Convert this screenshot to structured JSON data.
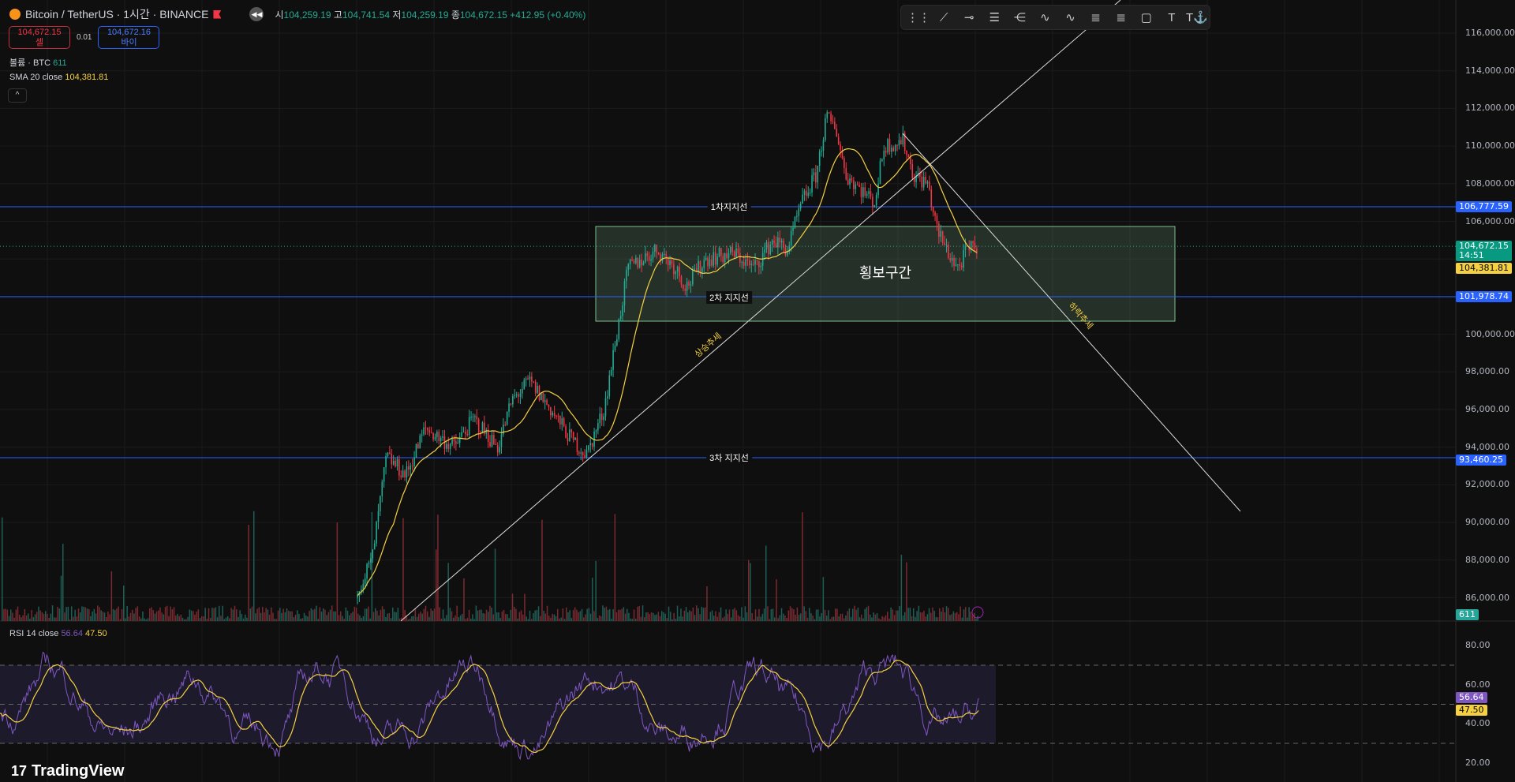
{
  "header": {
    "symbol": "Bitcoin / TetherUS · 1시간 · BINANCE",
    "ohlc": [
      {
        "k": "시",
        "v": "104,259.19"
      },
      {
        "k": "고",
        "v": "104,741.54"
      },
      {
        "k": "저",
        "v": "104,259.19"
      },
      {
        "k": "종",
        "v": "104,672.15"
      }
    ],
    "change": "+412.95 (+0.40%)"
  },
  "trade": {
    "sell_price": "104,672.15",
    "sell_label": "셀",
    "spread": "0.01",
    "buy_price": "104,672.16",
    "buy_label": "바이"
  },
  "legend": {
    "volume_label": "볼륨 · BTC",
    "volume_value": "611",
    "sma_label": "SMA 20 close",
    "sma_value": "104,381.81",
    "rsi_label": "RSI 14 close",
    "rsi_value": "56.64",
    "rsi_ma_value": "47.50"
  },
  "toolbar": [
    "drag-handle",
    "trend-line",
    "horizontal-ray",
    "parallel-channel",
    "pitchfork",
    "elliott-wave-15",
    "elliott-wave-ac",
    "fib-retracement",
    "fib-extension",
    "rectangle",
    "text",
    "anchored-text"
  ],
  "price_axis": [
    "116,000.00",
    "114,000.00",
    "112,000.00",
    "110,000.00",
    "108,000.00",
    "106,000.00",
    "100,000.00",
    "98,000.00",
    "96,000.00",
    "94,000.00",
    "92,000.00",
    "90,000.00",
    "88,000.00",
    "86,000.00"
  ],
  "rsi_axis": [
    "80.00",
    "60.00",
    "40.00",
    "20.00"
  ],
  "tags": {
    "line1": "106,777.59",
    "last": "104,672.15",
    "countdown": "14:51",
    "sma": "104,381.81",
    "line2": "101,978.74",
    "line3": "93,460.25",
    "volume": "611",
    "rsi": "56.64",
    "rsi_ma": "47.50"
  },
  "drawings": {
    "support1": "1차지지선",
    "support2": "2차 지지선",
    "support3": "3차 지지선",
    "range": "횡보구간",
    "uptrend": "상승추세",
    "downtrend": "하락추세"
  },
  "colors": {
    "up": "#22ab94",
    "down": "#f23645",
    "sma": "#f5d142",
    "rsi": "#7e57c2",
    "line": "#2962ff"
  },
  "brand": "TradingView"
}
